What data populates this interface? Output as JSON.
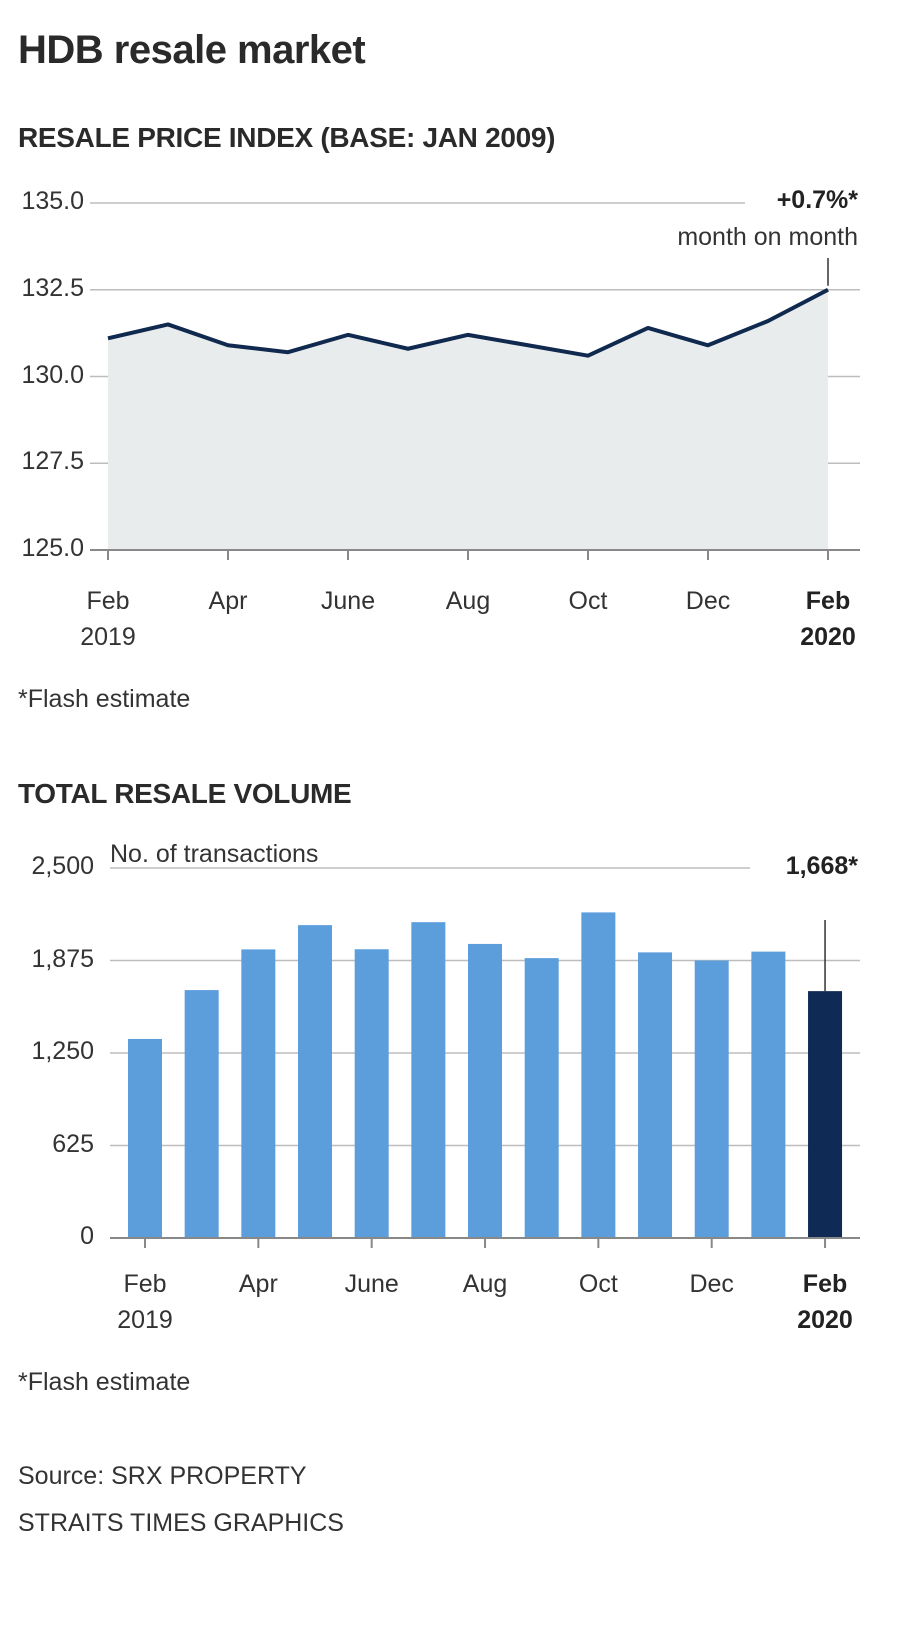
{
  "title": "HDB resale market",
  "chart_data": [
    {
      "type": "area",
      "title": "RESALE PRICE INDEX (BASE: JAN 2009)",
      "categories": [
        "Feb 2019",
        "Mar 2019",
        "Apr 2019",
        "May 2019",
        "Jun 2019",
        "Jul 2019",
        "Aug 2019",
        "Sep 2019",
        "Oct 2019",
        "Nov 2019",
        "Dec 2019",
        "Jan 2020",
        "Feb 2020"
      ],
      "values": [
        131.1,
        131.5,
        130.9,
        130.7,
        131.2,
        130.8,
        131.2,
        130.9,
        130.6,
        131.4,
        130.9,
        131.6,
        132.5
      ],
      "ylim": [
        125.0,
        135.0
      ],
      "yticks": [
        "135.0",
        "132.5",
        "130.0",
        "127.5",
        "125.0"
      ],
      "xtick_labels": [
        {
          "line1": "Feb",
          "line2": "2019",
          "bold": false
        },
        {
          "line1": "Apr",
          "line2": "",
          "bold": false
        },
        {
          "line1": "June",
          "line2": "",
          "bold": false
        },
        {
          "line1": "Aug",
          "line2": "",
          "bold": false
        },
        {
          "line1": "Oct",
          "line2": "",
          "bold": false
        },
        {
          "line1": "Dec",
          "line2": "",
          "bold": false
        },
        {
          "line1": "Feb",
          "line2": "2020",
          "bold": true
        }
      ],
      "annotation": {
        "value": "+0.7%*",
        "text": "month on month"
      },
      "footnote": "*Flash estimate",
      "grid": true,
      "colors": {
        "line": "#10294f",
        "fill": "#e9eced"
      }
    },
    {
      "type": "bar",
      "title": "TOTAL RESALE VOLUME",
      "ylabel": "No. of transactions",
      "categories": [
        "Feb 2019",
        "Mar 2019",
        "Apr 2019",
        "May 2019",
        "Jun 2019",
        "Jul 2019",
        "Aug 2019",
        "Sep 2019",
        "Oct 2019",
        "Nov 2019",
        "Dec 2019",
        "Jan 2020",
        "Feb 2020"
      ],
      "values": [
        1345,
        1675,
        1950,
        2114,
        1951,
        2134,
        1987,
        1891,
        2200,
        1930,
        1875,
        1935,
        1668
      ],
      "ylim": [
        0,
        2500
      ],
      "yticks": [
        "2,500",
        "1,875",
        "1,250",
        "625",
        "0"
      ],
      "xtick_labels": [
        {
          "line1": "Feb",
          "line2": "2019",
          "bold": false
        },
        {
          "line1": "Apr",
          "line2": "",
          "bold": false
        },
        {
          "line1": "June",
          "line2": "",
          "bold": false
        },
        {
          "line1": "Aug",
          "line2": "",
          "bold": false
        },
        {
          "line1": "Oct",
          "line2": "",
          "bold": false
        },
        {
          "line1": "Dec",
          "line2": "",
          "bold": false
        },
        {
          "line1": "Feb",
          "line2": "2020",
          "bold": true
        }
      ],
      "annotation": {
        "value": "1,668*"
      },
      "footnote": "*Flash estimate",
      "grid": true,
      "colors": {
        "bar": "#5c9ddc",
        "highlight": "#0f2a55"
      }
    }
  ],
  "source": "Source: SRX PROPERTY",
  "credit": "STRAITS TIMES GRAPHICS"
}
